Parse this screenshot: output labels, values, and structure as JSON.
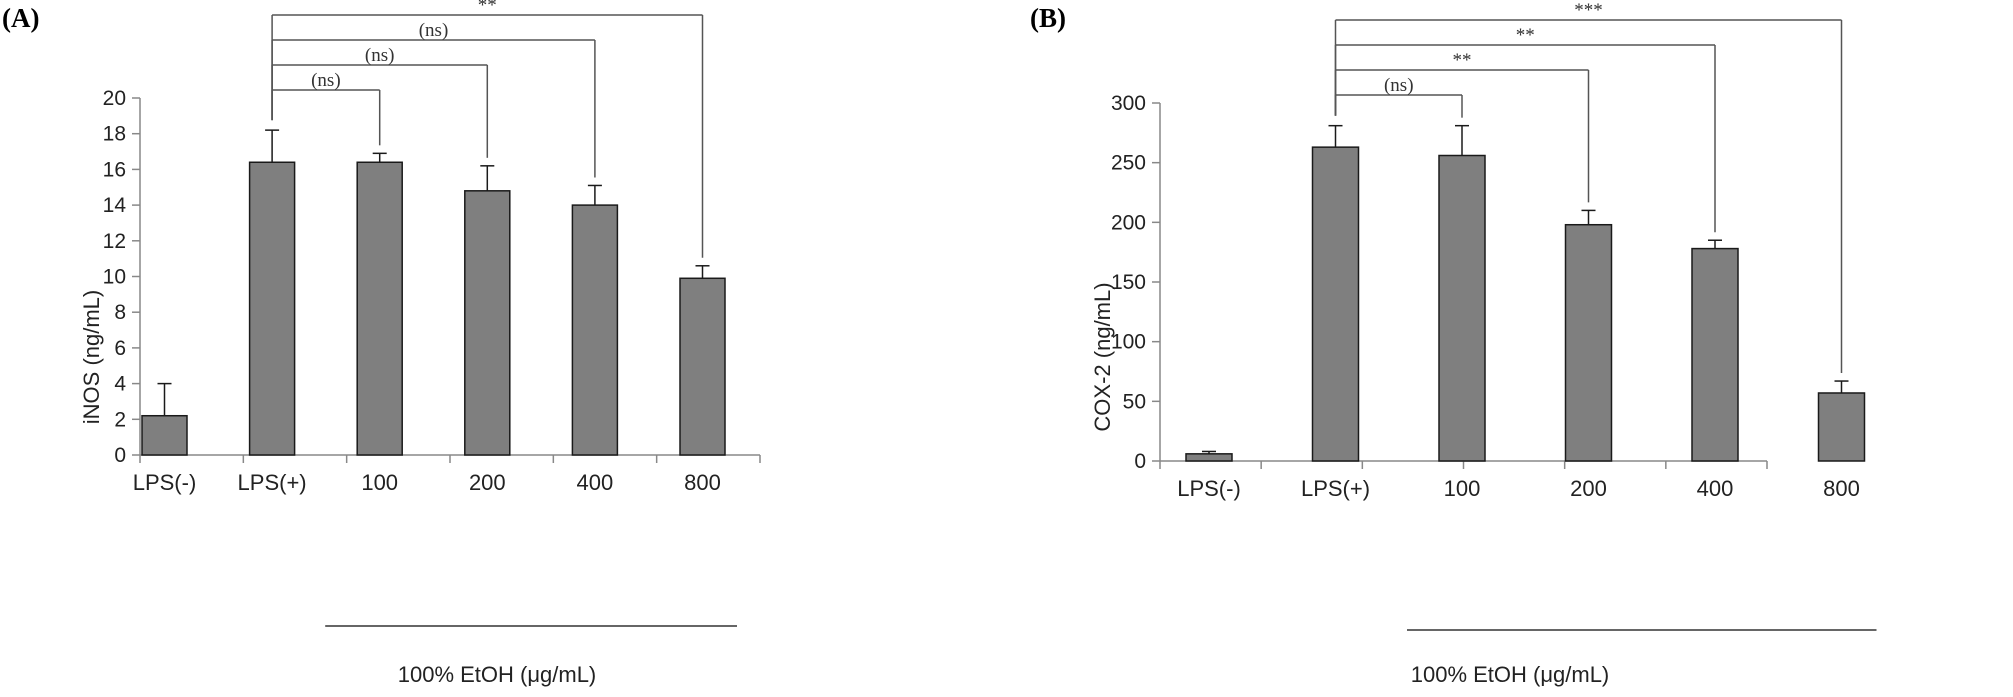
{
  "colors": {
    "bar_fill": "#7f7f7f",
    "bar_stroke": "#1a1a1a",
    "axis": "#888888",
    "bracket": "#555555"
  },
  "chart_data": [
    {
      "panel_label": "(A)",
      "type": "bar",
      "ylabel": "iNOS (ng/mL)",
      "xlabel": "",
      "categories": [
        "LPS(-)",
        "LPS(+)",
        "100",
        "200",
        "400",
        "800"
      ],
      "values": [
        2.2,
        16.4,
        16.4,
        14.8,
        14.0,
        9.9
      ],
      "errors": [
        1.8,
        1.8,
        0.5,
        1.4,
        1.1,
        0.7
      ],
      "ylim": [
        0,
        20
      ],
      "yticks": [
        0,
        2,
        4,
        6,
        8,
        10,
        12,
        14,
        16,
        18,
        20
      ],
      "grid": false,
      "group_label": "100% EtOH (μg/mL)",
      "group_span": [
        2,
        5
      ],
      "comparisons": [
        {
          "from": 1,
          "to": 2,
          "label": "(ns)"
        },
        {
          "from": 1,
          "to": 3,
          "label": "(ns)"
        },
        {
          "from": 1,
          "to": 4,
          "label": "(ns)"
        },
        {
          "from": 1,
          "to": 5,
          "label": "**"
        }
      ]
    },
    {
      "panel_label": "(B)",
      "type": "bar",
      "ylabel": "COX-2 (ng/mL)",
      "xlabel": "",
      "categories": [
        "LPS(-)",
        "LPS(+)",
        "100",
        "200",
        "400",
        "800"
      ],
      "values": [
        6,
        263,
        256,
        198,
        178,
        57
      ],
      "errors": [
        2,
        18,
        25,
        12,
        7,
        10
      ],
      "ylim": [
        0,
        300
      ],
      "yticks": [
        0,
        50,
        100,
        150,
        200,
        250,
        300
      ],
      "grid": false,
      "group_label": "100% EtOH (μg/mL)",
      "group_span": [
        2,
        5
      ],
      "comparisons": [
        {
          "from": 1,
          "to": 2,
          "label": "(ns)"
        },
        {
          "from": 1,
          "to": 3,
          "label": "**"
        },
        {
          "from": 1,
          "to": 4,
          "label": "**"
        },
        {
          "from": 1,
          "to": 5,
          "label": "***"
        }
      ]
    }
  ]
}
